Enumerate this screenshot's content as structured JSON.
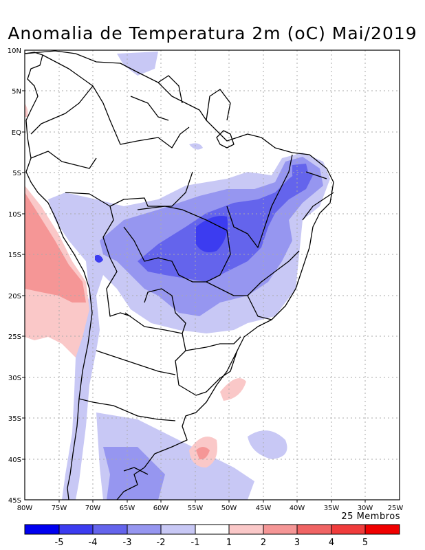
{
  "title": "Anomalia de Temperatura 2m (oC) Mai/2019",
  "members": "25 Membros",
  "lat_labels": [
    "10N",
    "5N",
    "EQ",
    "5S",
    "10S",
    "15S",
    "20S",
    "25S",
    "30S",
    "35S",
    "40S",
    "45S"
  ],
  "lon_labels": [
    "80W",
    "75W",
    "70W",
    "65W",
    "60W",
    "55W",
    "50W",
    "45W",
    "40W",
    "35W",
    "30W",
    "25W"
  ],
  "colorbar": {
    "labels": [
      "-5",
      "-4",
      "-3",
      "-2",
      "-1",
      "1",
      "2",
      "3",
      "4",
      "5"
    ],
    "colors": [
      "#0000f0",
      "#3c3cf0",
      "#6464ec",
      "#9696f0",
      "#c8c8f5",
      "#ffffff",
      "#fac8c8",
      "#f59696",
      "#f06464",
      "#f03c3c",
      "#f00000"
    ]
  }
}
